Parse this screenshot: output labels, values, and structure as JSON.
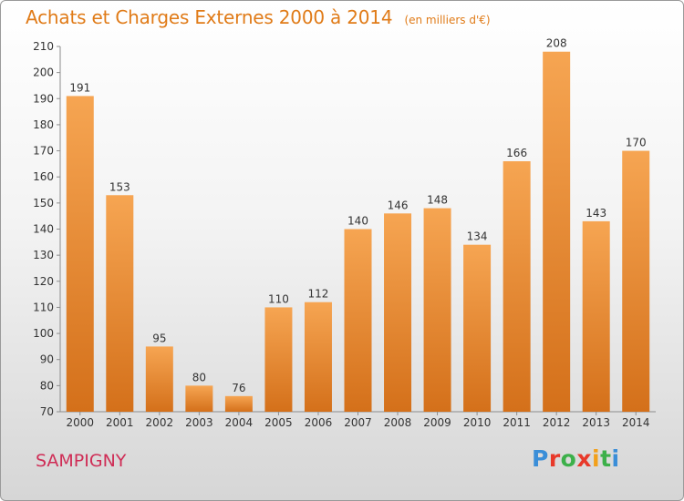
{
  "header": {
    "title": "Achats et Charges Externes 2000 à 2014",
    "unit": "(en milliers d'€)"
  },
  "footer": {
    "commune": "SAMPIGNY",
    "logo_letters": [
      "P",
      "r",
      "o",
      "x",
      "i",
      "t",
      "i"
    ],
    "logo_colors": [
      "#3a8ed8",
      "#e8392a",
      "#3cb04a",
      "#e8392a",
      "#f2a01b",
      "#3cb04a",
      "#3a8ed8"
    ]
  },
  "colors": {
    "bar_top": "#f6a552",
    "bar_bottom": "#d4701a",
    "title": "#e07b18",
    "commune": "#cf2d56"
  },
  "chart_data": {
    "type": "bar",
    "title": "Achats et Charges Externes 2000 à 2014",
    "subtitle": "(en milliers d'€)",
    "categories": [
      "2000",
      "2001",
      "2002",
      "2003",
      "2004",
      "2005",
      "2006",
      "2007",
      "2008",
      "2009",
      "2010",
      "2011",
      "2012",
      "2013",
      "2014"
    ],
    "values": [
      191,
      153,
      95,
      80,
      76,
      110,
      112,
      140,
      146,
      148,
      134,
      166,
      208,
      143,
      170
    ],
    "ylim": [
      70,
      210
    ],
    "yticks": [
      70,
      80,
      90,
      100,
      110,
      120,
      130,
      140,
      150,
      160,
      170,
      180,
      190,
      200,
      210
    ],
    "grid": false,
    "legend": "none"
  }
}
